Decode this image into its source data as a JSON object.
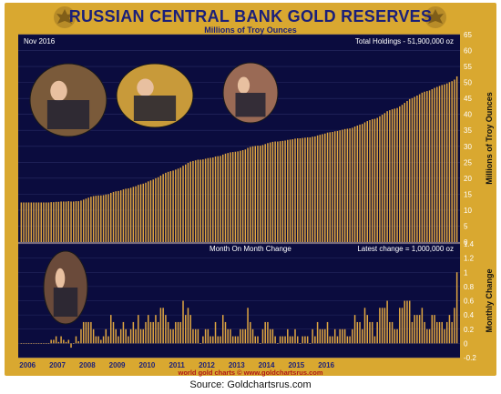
{
  "header": {
    "title": "RUSSIAN CENTRAL BANK GOLD RESERVES",
    "subtitle": "Millions of Troy Ounces"
  },
  "source": "Source: Goldchartsrus.com",
  "colors": {
    "frame": "#d9a830",
    "plot_background": "#0b0c3e",
    "bars": "#e0a640",
    "grid": "#2a2c66",
    "title_text": "#1a1f7a"
  },
  "chart_data": [
    {
      "type": "bar",
      "date_label": "Nov 2016",
      "annotation": "Total Holdings - 51,900,000 oz",
      "ylabel": "Millions of Troy Ounces",
      "ylim": [
        0,
        65
      ],
      "yticks": [
        "0",
        "5",
        "10",
        "15",
        "20",
        "25",
        "30",
        "35",
        "40",
        "45",
        "50",
        "55",
        "60",
        "65"
      ],
      "period": {
        "start": "2006-01",
        "end": "2016-11",
        "frequency": "monthly"
      },
      "values": [
        12.4,
        12.4,
        12.4,
        12.4,
        12.4,
        12.4,
        12.4,
        12.4,
        12.4,
        12.4,
        12.4,
        12.4,
        12.5,
        12.5,
        12.6,
        12.6,
        12.7,
        12.7,
        12.7,
        12.8,
        12.7,
        12.7,
        12.8,
        12.8,
        13.0,
        13.3,
        13.6,
        13.9,
        14.2,
        14.4,
        14.5,
        14.6,
        14.6,
        14.7,
        14.9,
        15.0,
        15.4,
        15.7,
        15.9,
        16.0,
        16.2,
        16.5,
        16.7,
        16.8,
        17.0,
        17.3,
        17.5,
        17.9,
        18.1,
        18.3,
        18.6,
        19.0,
        19.3,
        19.6,
        20.0,
        20.3,
        20.8,
        21.3,
        21.7,
        22.0,
        22.2,
        22.4,
        22.7,
        23.0,
        23.3,
        23.9,
        24.3,
        24.8,
        25.2,
        25.4,
        25.6,
        25.8,
        25.8,
        25.9,
        26.1,
        26.3,
        26.4,
        26.5,
        26.8,
        26.9,
        27.0,
        27.4,
        27.7,
        27.9,
        28.1,
        28.2,
        28.3,
        28.4,
        28.6,
        28.8,
        29.0,
        29.5,
        29.8,
        30.0,
        30.1,
        30.2,
        30.2,
        30.4,
        30.7,
        31.0,
        31.2,
        31.4,
        31.5,
        31.5,
        31.6,
        31.7,
        31.8,
        32.0,
        32.1,
        32.2,
        32.4,
        32.5,
        32.5,
        32.6,
        32.7,
        32.8,
        32.8,
        33.0,
        33.1,
        33.4,
        33.6,
        33.8,
        34.0,
        34.3,
        34.4,
        34.5,
        34.7,
        34.8,
        35.0,
        35.2,
        35.4,
        35.5,
        35.6,
        35.8,
        36.2,
        36.5,
        36.8,
        37.0,
        37.5,
        37.9,
        38.2,
        38.5,
        38.6,
        38.9,
        39.4,
        39.9,
        40.4,
        41.0,
        41.3,
        41.6,
        41.8,
        42.0,
        42.5,
        43.0,
        43.6,
        44.2,
        44.8,
        45.1,
        45.5,
        45.9,
        46.3,
        46.8,
        47.1,
        47.3,
        47.5,
        47.9,
        48.3,
        48.6,
        48.9,
        49.2,
        49.4,
        49.7,
        50.1,
        50.4,
        50.9,
        51.9
      ]
    },
    {
      "type": "bar",
      "title": "Month On Month Change",
      "annotation": "Latest change = 1,000,000 oz",
      "ylabel": "Monthly Change",
      "ylim": [
        -0.2,
        1.4
      ],
      "yticks": [
        "-0.2",
        "0",
        "0.2",
        "0.4",
        "0.6",
        "0.8",
        "1",
        "1.2",
        "1.4"
      ],
      "x_tick_labels": [
        "2006",
        "2007",
        "2008",
        "2009",
        "2010",
        "2011",
        "2012",
        "2013",
        "2014",
        "2015",
        "2016"
      ],
      "values": [
        0,
        0,
        0,
        0,
        0,
        0,
        0,
        0,
        0,
        0,
        0,
        0,
        0.05,
        0.05,
        0.1,
        0.02,
        0.1,
        0.05,
        0.02,
        0.05,
        -0.06,
        0,
        0.1,
        0.03,
        0.2,
        0.3,
        0.3,
        0.3,
        0.3,
        0.2,
        0.1,
        0.1,
        0.05,
        0.1,
        0.2,
        0.1,
        0.4,
        0.3,
        0.2,
        0.1,
        0.2,
        0.3,
        0.2,
        0.1,
        0.2,
        0.3,
        0.2,
        0.4,
        0.2,
        0.2,
        0.3,
        0.4,
        0.3,
        0.3,
        0.4,
        0.3,
        0.5,
        0.5,
        0.4,
        0.3,
        0.2,
        0.2,
        0.3,
        0.3,
        0.3,
        0.6,
        0.4,
        0.5,
        0.4,
        0.2,
        0.2,
        0.2,
        0,
        0.1,
        0.2,
        0.2,
        0.1,
        0.1,
        0.3,
        0.1,
        0.1,
        0.4,
        0.3,
        0.2,
        0.2,
        0.1,
        0.1,
        0.1,
        0.2,
        0.2,
        0.2,
        0.5,
        0.3,
        0.2,
        0.1,
        0.1,
        0,
        0.2,
        0.3,
        0.3,
        0.2,
        0.2,
        0.1,
        0,
        0.1,
        0.1,
        0.1,
        0.2,
        0.1,
        0.1,
        0.2,
        0.1,
        0,
        0.1,
        0.1,
        0.1,
        0,
        0.2,
        0.1,
        0.3,
        0.2,
        0.2,
        0.2,
        0.3,
        0.1,
        0.1,
        0.2,
        0.1,
        0.2,
        0.2,
        0.2,
        0.1,
        0.1,
        0.2,
        0.4,
        0.3,
        0.3,
        0.2,
        0.5,
        0.4,
        0.3,
        0.3,
        0.1,
        0.3,
        0.5,
        0.5,
        0.5,
        0.6,
        0.3,
        0.3,
        0.2,
        0.2,
        0.5,
        0.5,
        0.6,
        0.6,
        0.6,
        0.3,
        0.4,
        0.4,
        0.4,
        0.5,
        0.3,
        0.2,
        0.2,
        0.4,
        0.4,
        0.3,
        0.3,
        0.3,
        0.2,
        0.3,
        0.4,
        0.3,
        0.5,
        1.0
      ]
    }
  ],
  "footer_link": "world gold charts © www.goldchartsrus.com",
  "photos": [
    {
      "name": "photo-officials-with-gold"
    },
    {
      "name": "photo-gold-bar-closeup"
    },
    {
      "name": "photo-medvedev"
    },
    {
      "name": "photo-putin-with-gold"
    }
  ]
}
